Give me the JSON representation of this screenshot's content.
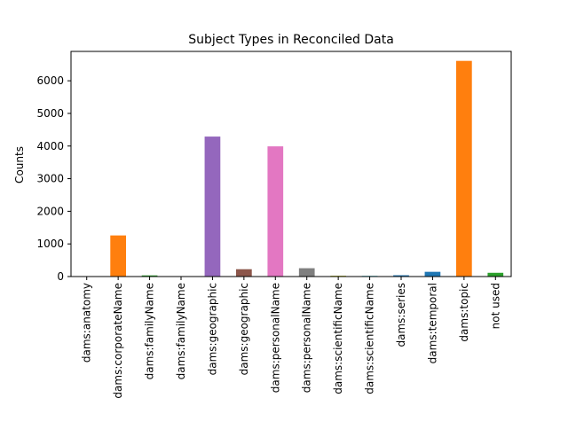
{
  "chart_data": {
    "type": "bar",
    "title": "Subject Types in Reconciled Data",
    "xlabel": "",
    "ylabel": "Counts",
    "ylim": [
      0,
      6900
    ],
    "yticks": [
      0,
      1000,
      2000,
      3000,
      4000,
      5000,
      6000
    ],
    "grid": false,
    "legend": "none",
    "categories": [
      "dams:anatomy",
      "dams:corporateName",
      "dams:familyName",
      "dams:familyName",
      "dams:geographic",
      "dams:geographic",
      "dams:personalName",
      "dams:personalName",
      "dams:scientificName",
      "dams:scientificName",
      "dams:series",
      "dams:temporal",
      "dams:topic",
      "not used"
    ],
    "values": [
      8,
      1260,
      35,
      3,
      4290,
      225,
      3990,
      255,
      25,
      20,
      40,
      145,
      6610,
      115
    ],
    "colors": [
      "#1f77b4",
      "#ff7f0e",
      "#2ca02c",
      "#d62728",
      "#9467bd",
      "#8c564b",
      "#e377c2",
      "#7f7f7f",
      "#bcbd22",
      "#17becf",
      "#1f77b4",
      "#1f77b4",
      "#ff7f0e",
      "#2ca02c"
    ]
  }
}
